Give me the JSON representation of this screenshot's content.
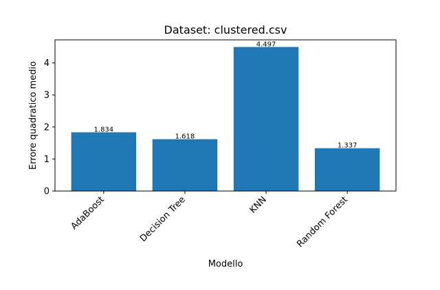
{
  "chart_data": {
    "type": "bar",
    "title": "Dataset: clustered.csv",
    "xlabel": "Modello",
    "ylabel": "Errore quadratico medio",
    "categories": [
      "AdaBoost",
      "Decision Tree",
      "KNN",
      "Random Forest"
    ],
    "values": [
      1.834,
      1.618,
      4.497,
      1.337
    ],
    "value_labels": [
      "1.834",
      "1.618",
      "4.497",
      "1.337"
    ],
    "yticks": [
      0,
      1,
      2,
      3,
      4
    ],
    "ylim": [
      0,
      4.72
    ],
    "grid": false,
    "legend": "none",
    "bar_color": "#1f77b4",
    "x_tick_rotation_deg": 45
  }
}
